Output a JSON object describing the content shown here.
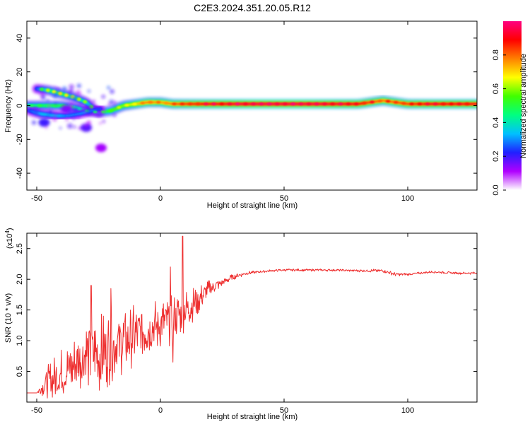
{
  "figure_title": "C2E3.2024.351.20.05.R12",
  "chart_data": [
    {
      "type": "heatmap",
      "title": "C2E3.2024.351.20.05.R12",
      "xlabel": "Height of straight line (km)",
      "ylabel": "Frequency (Hz)",
      "xlim": [
        -54,
        128
      ],
      "ylim": [
        -50,
        50
      ],
      "xticks": [
        -50,
        0,
        50,
        100
      ],
      "xtick_labels": [
        "-50",
        "0",
        "50",
        "100"
      ],
      "yticks": [
        40,
        20,
        0,
        -20,
        -40
      ],
      "ytick_labels": [
        "40",
        "20",
        "0",
        "-20",
        "-40"
      ],
      "colorbar": {
        "label": "Normalized spectral amplitude",
        "range": [
          0,
          1
        ],
        "ticks": [
          0.0,
          0.2,
          0.4,
          0.6,
          0.8
        ],
        "tick_labels": [
          "0.0",
          "0.2",
          "0.4",
          "0.6",
          "0.8"
        ],
        "colors": [
          "#ffffff",
          "#b000ff",
          "#2020ff",
          "#00c0ff",
          "#00ff80",
          "#40ff00",
          "#ffff00",
          "#ff8000",
          "#ff0000",
          "#ff0080"
        ]
      },
      "main_ridge": {
        "height_km": [
          -54,
          -45,
          -40,
          -35,
          -30,
          -25,
          -20,
          -15,
          -10,
          -5,
          0,
          5,
          10,
          20,
          40,
          60,
          80,
          90,
          100,
          110,
          128
        ],
        "frequency_hz": [
          0,
          0,
          0,
          -1,
          -3,
          -4,
          -3,
          0,
          1,
          2,
          2,
          1,
          1,
          1,
          1,
          1,
          1,
          3,
          1,
          1,
          1
        ],
        "amplitude": [
          0.45,
          0.5,
          0.5,
          0.45,
          0.4,
          0.45,
          0.55,
          0.6,
          0.7,
          0.8,
          0.75,
          0.8,
          0.85,
          0.9,
          0.95,
          0.95,
          0.9,
          0.8,
          0.85,
          0.9,
          0.9
        ]
      },
      "secondary_branch": {
        "height_km": [
          -50,
          -45,
          -40,
          -35,
          -30,
          -27,
          -25
        ],
        "frequency_hz": [
          10,
          9,
          7,
          5,
          2,
          -2,
          -4
        ],
        "amplitude": [
          0.25,
          0.45,
          0.5,
          0.45,
          0.4,
          0.35,
          0.3
        ]
      },
      "lower_branch": {
        "height_km": [
          -53,
          -48,
          -42,
          -38,
          -33,
          -28,
          -25
        ],
        "frequency_hz": [
          -3,
          -5,
          -6,
          -6,
          -5,
          -3,
          -2
        ],
        "amplitude": [
          0.25,
          0.35,
          0.35,
          0.3,
          0.3,
          0.3,
          0.25
        ]
      },
      "scatter_blobs": [
        {
          "height_km": -47,
          "frequency_hz": -10,
          "amplitude": 0.2
        },
        {
          "height_km": -30,
          "frequency_hz": -13,
          "amplitude": 0.18
        },
        {
          "height_km": -24,
          "frequency_hz": -25,
          "amplitude": 0.12
        },
        {
          "height_km": -38,
          "frequency_hz": -2,
          "amplitude": 0.15
        }
      ]
    },
    {
      "type": "line",
      "xlabel": "Height of straight line (km)",
      "ylabel": "SNR (10 * v/v)",
      "y_multiplier_label": "(x10^4)",
      "y_multiplier_base": "(x10",
      "y_multiplier_exp": "4",
      "y_multiplier_close": ")",
      "xlim": [
        -54,
        128
      ],
      "ylim": [
        0,
        2.75
      ],
      "xticks": [
        -50,
        0,
        50,
        100
      ],
      "xtick_labels": [
        "-50",
        "0",
        "50",
        "100"
      ],
      "yticks": [
        0.5,
        1.0,
        1.5,
        2.0,
        2.5
      ],
      "ytick_labels": [
        "0.5",
        "1.0",
        "1.5",
        "2.0",
        "2.5"
      ],
      "line_color": "#ee3030",
      "series": [
        {
          "name": "SNR",
          "x": [
            -54,
            -50,
            -45,
            -40,
            -35,
            -30,
            -25,
            -20,
            -15,
            -10,
            -5,
            0,
            5,
            10,
            15,
            20,
            25,
            30,
            35,
            40,
            45,
            50,
            60,
            70,
            80,
            90,
            95,
            100,
            110,
            120,
            128
          ],
          "y": [
            0.15,
            0.15,
            0.35,
            0.45,
            0.6,
            0.8,
            0.75,
            0.9,
            1.0,
            1.1,
            1.2,
            1.25,
            1.35,
            1.5,
            1.65,
            1.85,
            1.95,
            2.05,
            2.1,
            2.12,
            2.14,
            2.15,
            2.15,
            2.15,
            2.14,
            2.14,
            2.08,
            2.08,
            2.12,
            2.1,
            2.1
          ],
          "fluctuation_range": [
            0,
            0,
            0.3,
            0.45,
            0.5,
            0.6,
            0.7,
            0.6,
            0.55,
            0.5,
            0.45,
            0.45,
            0.4,
            0.35,
            0.25,
            0.15,
            0.07,
            0.05,
            0.03,
            0.02,
            0.02,
            0.02,
            0.02,
            0.02,
            0.02,
            0.03,
            0.03,
            0.02,
            0.02,
            0.02,
            0.02
          ],
          "peaks": [
            {
              "x": -28,
              "y": 1.9
            },
            {
              "x": -20,
              "y": 1.85
            },
            {
              "x": 4,
              "y": 2.2
            },
            {
              "x": 9,
              "y": 2.7
            },
            {
              "x": 5,
              "y": 0.65
            }
          ]
        }
      ]
    }
  ]
}
